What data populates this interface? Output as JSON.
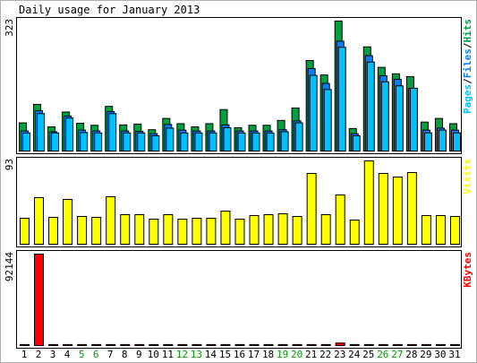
{
  "chart_data": {
    "type": "bar",
    "title": "Daily usage for January 2013",
    "categories": [
      "1",
      "2",
      "3",
      "4",
      "5",
      "6",
      "7",
      "8",
      "9",
      "10",
      "11",
      "12",
      "13",
      "14",
      "15",
      "16",
      "17",
      "18",
      "19",
      "20",
      "21",
      "22",
      "23",
      "24",
      "25",
      "26",
      "27",
      "28",
      "29",
      "30",
      "31"
    ],
    "weekend_days": [
      "5",
      "6",
      "12",
      "13",
      "19",
      "20",
      "26",
      "27"
    ],
    "panels": [
      {
        "key": "requests",
        "max_label": "323",
        "legend": [
          "Pages",
          "/",
          "Files",
          "/",
          "Hits"
        ],
        "series": [
          {
            "name": "Hits",
            "color": "#00a040",
            "values": [
              70,
              116,
              60,
              97,
              69,
              64,
              111,
              65,
              67,
              53,
              81,
              68,
              60,
              68,
              103,
              58,
              64,
              64,
              76,
              107,
              225,
              189,
              323,
              56,
              259,
              208,
              192,
              185,
              72,
              81,
              68
            ]
          },
          {
            "name": "Files",
            "color": "#0080ff",
            "values": [
              50,
              100,
              48,
              87,
              52,
              50,
              98,
              50,
              49,
              43,
              66,
              52,
              50,
              50,
              65,
              50,
              50,
              50,
              53,
              75,
              205,
              168,
              273,
              43,
              237,
              187,
              178,
              156,
              52,
              57,
              52
            ]
          },
          {
            "name": "Pages",
            "color": "#00c0ff",
            "values": [
              45,
              93,
              45,
              82,
              46,
              45,
              93,
              45,
              45,
              38,
              57,
              45,
              45,
              45,
              58,
              45,
              45,
              45,
              48,
              70,
              188,
              153,
              258,
              38,
              221,
              172,
              162,
              156,
              45,
              52,
              45
            ]
          }
        ]
      },
      {
        "key": "visits",
        "max_label": "93",
        "legend": [
          "Visits"
        ],
        "series": [
          {
            "name": "Visits",
            "color": "#ffff00",
            "values": [
              29,
              52,
              30,
              50,
              31,
              30,
              53,
              33,
              33,
              28,
              33,
              28,
              29,
              29,
              37,
              28,
              32,
              33,
              34,
              31,
              79,
              33,
              55,
              27,
              93,
              79,
              75,
              80,
              32,
              32,
              31
            ]
          }
        ]
      },
      {
        "key": "kbytes",
        "max_label": "92144",
        "legend": [
          "KBytes"
        ],
        "series": [
          {
            "name": "KBytes",
            "color": "#ff0000",
            "values": [
              1000,
              92144,
              1000,
              1000,
              1000,
              1000,
              1000,
              1000,
              1000,
              1000,
              1000,
              1000,
              1000,
              1000,
              1000,
              1000,
              1000,
              1000,
              1000,
              1000,
              1000,
              1000,
              2500,
              1000,
              1000,
              1000,
              1000,
              1000,
              1000,
              1000,
              1000
            ]
          }
        ]
      }
    ],
    "colors": {
      "background": "#ffffff",
      "panel_border": "#000000",
      "axis_text": "#000000",
      "weekend_text": "#00a000",
      "pages": "#00c0ff",
      "files": "#0080ff",
      "hits": "#00a040",
      "visits": "#ffff00",
      "kbytes": "#ff0000"
    }
  }
}
